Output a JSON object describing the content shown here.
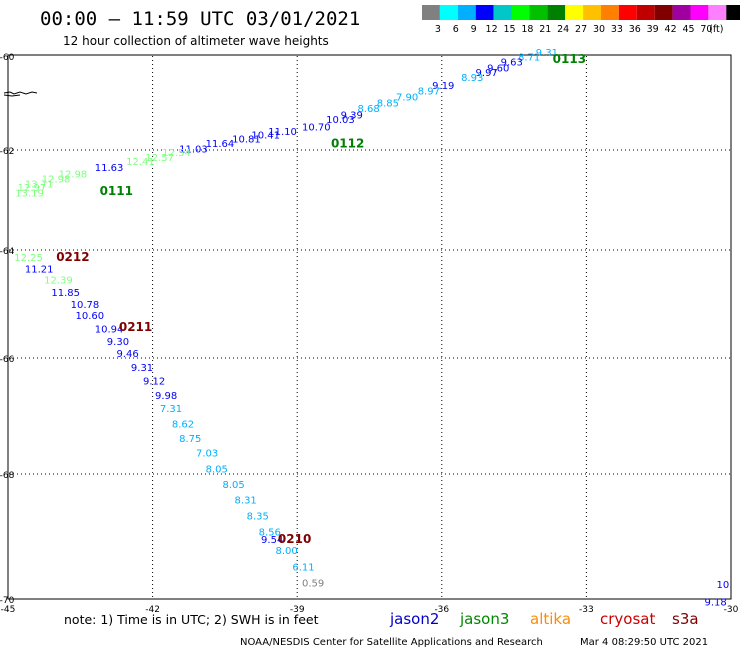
{
  "header": {
    "title": "00:00 – 11:59 UTC 03/01/2021",
    "subtitle": "12 hour collection of altimeter wave heights"
  },
  "color_scale": {
    "colors": [
      "#808080",
      "#00ffff",
      "#00b0ff",
      "#0000ff",
      "#00c8c8",
      "#00ff00",
      "#00c000",
      "#008000",
      "#ffff00",
      "#ffc000",
      "#ff8000",
      "#ff0000",
      "#c00000",
      "#800000",
      "#a000a0",
      "#ff00ff",
      "#ff80ff",
      "#000000"
    ],
    "labels": [
      "3",
      "6",
      "9",
      "12",
      "15",
      "18",
      "21",
      "24",
      "27",
      "30",
      "33",
      "36",
      "39",
      "42",
      "45",
      "70",
      "(ft)"
    ]
  },
  "footer": {
    "note": "note:  1) Time is in UTC; 2) SWH is in feet",
    "credit": "NOAA/NESDIS Center for Satellite Applications and Research",
    "timestamp": "Mar  4 08:29:50 UTC 2021"
  },
  "chart_data": {
    "type": "scatter",
    "xlim": [
      -45,
      -30
    ],
    "ylim": [
      -70,
      -60
    ],
    "x_ticks": [
      "-45",
      "-42",
      "-39",
      "-36",
      "-33",
      "-30"
    ],
    "y_ticks": [
      "-60",
      "-62",
      "-64",
      "-66",
      "-68",
      "-70"
    ],
    "grid": true,
    "legend": [
      {
        "name": "jason2",
        "color": "#0000cc"
      },
      {
        "name": "jason3",
        "color": "#008800"
      },
      {
        "name": "altika",
        "color": "#ff8c00"
      },
      {
        "name": "cryosat",
        "color": "#cc0000"
      },
      {
        "name": "s3a",
        "color": "#800000"
      }
    ],
    "passes": [
      {
        "label": "0113",
        "color": "#008000",
        "lon": -33.7,
        "lat": -60.15
      },
      {
        "label": "0112",
        "color": "#008000",
        "lon": -38.3,
        "lat": -61.95
      },
      {
        "label": "0111",
        "color": "#008000",
        "lon": -43.1,
        "lat": -62.9
      },
      {
        "label": "0212",
        "color": "#800000",
        "lon": -44.0,
        "lat": -64.2
      },
      {
        "label": "0211",
        "color": "#800000",
        "lon": -42.7,
        "lat": -65.5
      },
      {
        "label": "0210",
        "color": "#800000",
        "lon": -39.4,
        "lat": -69.1
      }
    ],
    "observations": [
      {
        "swh": "9.31",
        "lon": -34.05,
        "lat": -60.0,
        "color": "#00b0ff"
      },
      {
        "swh": "8.71",
        "lon": -34.42,
        "lat": -60.1,
        "color": "#00b0ff"
      },
      {
        "swh": "9.63",
        "lon": -34.78,
        "lat": -60.2,
        "color": "#0000ff"
      },
      {
        "swh": "9.60",
        "lon": -35.06,
        "lat": -60.33,
        "color": "#0000ff"
      },
      {
        "swh": "9.97",
        "lon": -35.3,
        "lat": -60.43,
        "color": "#0000ff"
      },
      {
        "swh": "8.93",
        "lon": -35.6,
        "lat": -60.53,
        "color": "#00b0ff"
      },
      {
        "swh": "9.19",
        "lon": -36.2,
        "lat": -60.7,
        "color": "#0000ff"
      },
      {
        "swh": "8.97",
        "lon": -36.5,
        "lat": -60.82,
        "color": "#00b0ff"
      },
      {
        "swh": "7.90",
        "lon": -36.95,
        "lat": -60.95,
        "color": "#00b0ff"
      },
      {
        "swh": "8.85",
        "lon": -37.35,
        "lat": -61.07,
        "color": "#00b0ff"
      },
      {
        "swh": "8.68",
        "lon": -37.75,
        "lat": -61.19,
        "color": "#00b0ff"
      },
      {
        "swh": "9.39",
        "lon": -38.1,
        "lat": -61.33,
        "color": "#0000ff"
      },
      {
        "swh": "10.03",
        "lon": -38.4,
        "lat": -61.43,
        "color": "#0000ff"
      },
      {
        "swh": "10.70",
        "lon": -38.9,
        "lat": -61.58,
        "color": "#0000ff"
      },
      {
        "swh": "11.10",
        "lon": -39.6,
        "lat": -61.68,
        "color": "#0000ff"
      },
      {
        "swh": "10.41",
        "lon": -39.95,
        "lat": -61.75,
        "color": "#0000ff"
      },
      {
        "swh": "10.81",
        "lon": -40.35,
        "lat": -61.84,
        "color": "#0000ff"
      },
      {
        "swh": "11.64",
        "lon": -40.9,
        "lat": -61.94,
        "color": "#0000ff"
      },
      {
        "swh": "11.03",
        "lon": -41.45,
        "lat": -62.05,
        "color": "#0000ff"
      },
      {
        "swh": "12.54",
        "lon": -41.8,
        "lat": -62.12,
        "color": "#80ff80"
      },
      {
        "swh": "12.57",
        "lon": -42.15,
        "lat": -62.22,
        "color": "#80ff80"
      },
      {
        "swh": "12.41",
        "lon": -42.55,
        "lat": -62.3,
        "color": "#80ff80"
      },
      {
        "swh": "11.63",
        "lon": -43.2,
        "lat": -62.42,
        "color": "#0000ff"
      },
      {
        "swh": "12.98",
        "lon": -43.95,
        "lat": -62.55,
        "color": "#80ff80"
      },
      {
        "swh": "12.98",
        "lon": -44.3,
        "lat": -62.65,
        "color": "#80ff80"
      },
      {
        "swh": "13.71",
        "lon": -44.65,
        "lat": -62.75,
        "color": "#80ff80"
      },
      {
        "swh": "12.97",
        "lon": -44.8,
        "lat": -62.82,
        "color": "#80ff80"
      },
      {
        "swh": "13.19",
        "lon": -44.85,
        "lat": -62.93,
        "color": "#80ff80"
      },
      {
        "swh": "12.25",
        "lon": -44.87,
        "lat": -64.2,
        "color": "#80ff80"
      },
      {
        "swh": "11.21",
        "lon": -44.65,
        "lat": -64.42,
        "color": "#0000ff"
      },
      {
        "swh": "12.39",
        "lon": -44.25,
        "lat": -64.62,
        "color": "#80ff80"
      },
      {
        "swh": "11.85",
        "lon": -44.1,
        "lat": -64.85,
        "color": "#0000ff"
      },
      {
        "swh": "10.78",
        "lon": -43.7,
        "lat": -65.07,
        "color": "#0000ff"
      },
      {
        "swh": "10.60",
        "lon": -43.6,
        "lat": -65.28,
        "color": "#0000ff"
      },
      {
        "swh": "10.94",
        "lon": -43.2,
        "lat": -65.53,
        "color": "#0000ff"
      },
      {
        "swh": "9.30",
        "lon": -42.95,
        "lat": -65.76,
        "color": "#0000ff"
      },
      {
        "swh": "9.46",
        "lon": -42.75,
        "lat": -65.98,
        "color": "#0000ff"
      },
      {
        "swh": "9.31",
        "lon": -42.45,
        "lat": -66.22,
        "color": "#0000ff"
      },
      {
        "swh": "9.12",
        "lon": -42.2,
        "lat": -66.46,
        "color": "#0000ff"
      },
      {
        "swh": "9.98",
        "lon": -41.95,
        "lat": -66.71,
        "color": "#0000ff"
      },
      {
        "swh": "7.31",
        "lon": -41.85,
        "lat": -66.93,
        "color": "#00b0ff"
      },
      {
        "swh": "8.62",
        "lon": -41.6,
        "lat": -67.2,
        "color": "#00b0ff"
      },
      {
        "swh": "8.75",
        "lon": -41.45,
        "lat": -67.45,
        "color": "#00b0ff"
      },
      {
        "swh": "7.03",
        "lon": -41.1,
        "lat": -67.7,
        "color": "#00b0ff"
      },
      {
        "swh": "8.05",
        "lon": -40.9,
        "lat": -67.97,
        "color": "#00b0ff"
      },
      {
        "swh": "8.05",
        "lon": -40.55,
        "lat": -68.22,
        "color": "#00b0ff"
      },
      {
        "swh": "8.31",
        "lon": -40.3,
        "lat": -68.47,
        "color": "#00b0ff"
      },
      {
        "swh": "8.35",
        "lon": -40.05,
        "lat": -68.73,
        "color": "#00b0ff"
      },
      {
        "swh": "8.56",
        "lon": -39.8,
        "lat": -68.98,
        "color": "#00b0ff"
      },
      {
        "swh": "9.54",
        "lon": -39.75,
        "lat": -69.1,
        "color": "#0000ff"
      },
      {
        "swh": "8.00",
        "lon": -39.45,
        "lat": -69.28,
        "color": "#00b0ff"
      },
      {
        "swh": "6.11",
        "lon": -39.1,
        "lat": -69.54,
        "color": "#00b0ff"
      },
      {
        "swh": "0.59",
        "lon": -38.9,
        "lat": -69.8,
        "color": "#808080"
      },
      {
        "swh": "10.",
        "lon": -30.3,
        "lat": -69.82,
        "color": "#0000ff"
      },
      {
        "swh": "9.18",
        "lon": -30.55,
        "lat": -70.1,
        "color": "#0000ff"
      }
    ]
  }
}
